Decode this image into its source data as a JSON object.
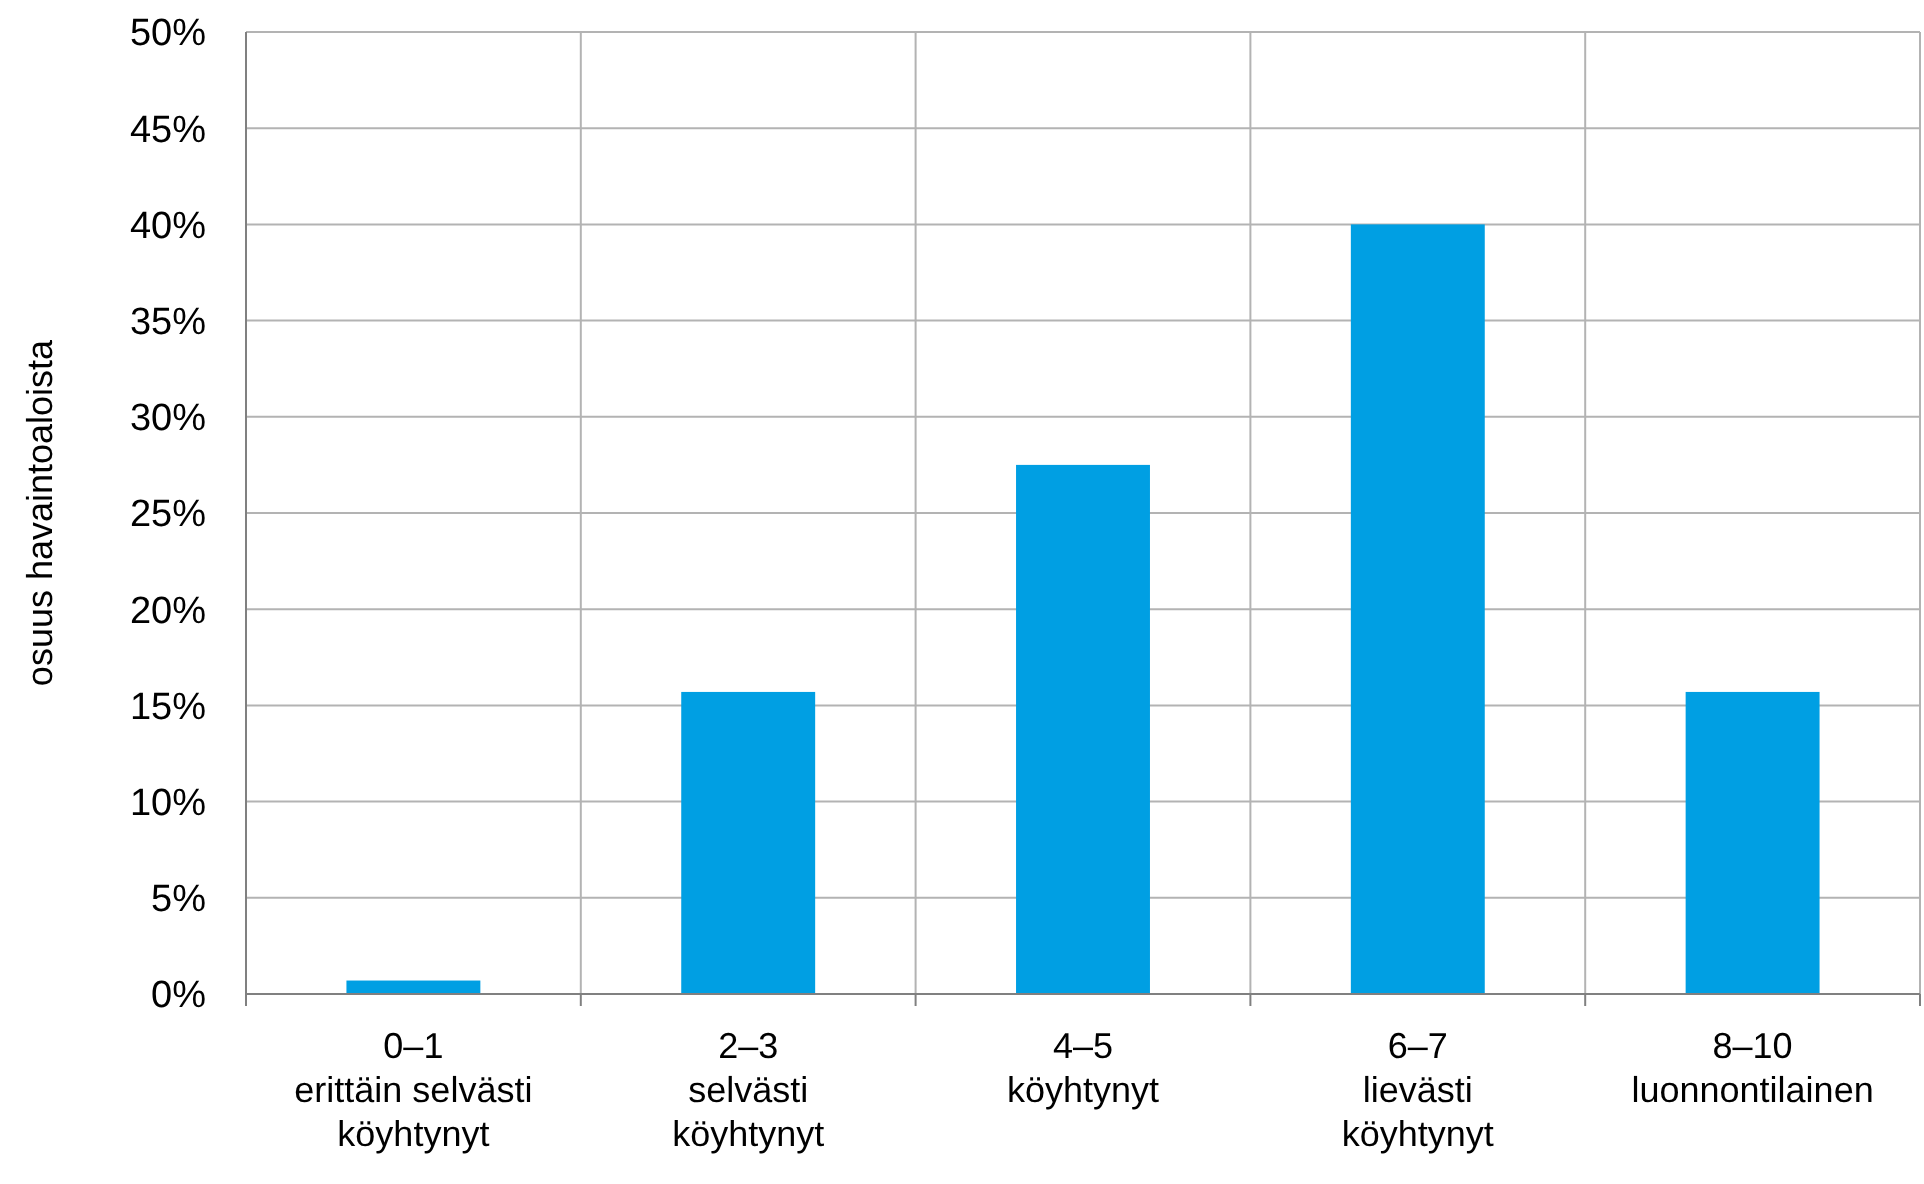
{
  "chart_data": {
    "type": "bar",
    "ylabel": "osuus havaintoaloista",
    "categories": [
      "0–1\nerittäin selvästi\nköyhtynyt",
      "2–3\nselvästi\nköyhtynyt",
      "4–5\nköyhtynyt",
      "6–7\nlievästi\nköyhtynyt",
      "8–10\nluonnontilainen"
    ],
    "values": [
      0.7,
      15.7,
      27.5,
      40,
      15.7
    ],
    "color": "#009fe3",
    "ylim": [
      0,
      50
    ],
    "yticks": [
      {
        "value": 0,
        "label": "0%"
      },
      {
        "value": 5,
        "label": "5%"
      },
      {
        "value": 10,
        "label": "10%"
      },
      {
        "value": 15,
        "label": "15%"
      },
      {
        "value": 20,
        "label": "20%"
      },
      {
        "value": 25,
        "label": "25%"
      },
      {
        "value": 30,
        "label": "30%"
      },
      {
        "value": 35,
        "label": "35%"
      },
      {
        "value": 40,
        "label": "40%"
      },
      {
        "value": 45,
        "label": "45%"
      },
      {
        "value": 50,
        "label": "50%"
      }
    ],
    "grid": true
  }
}
